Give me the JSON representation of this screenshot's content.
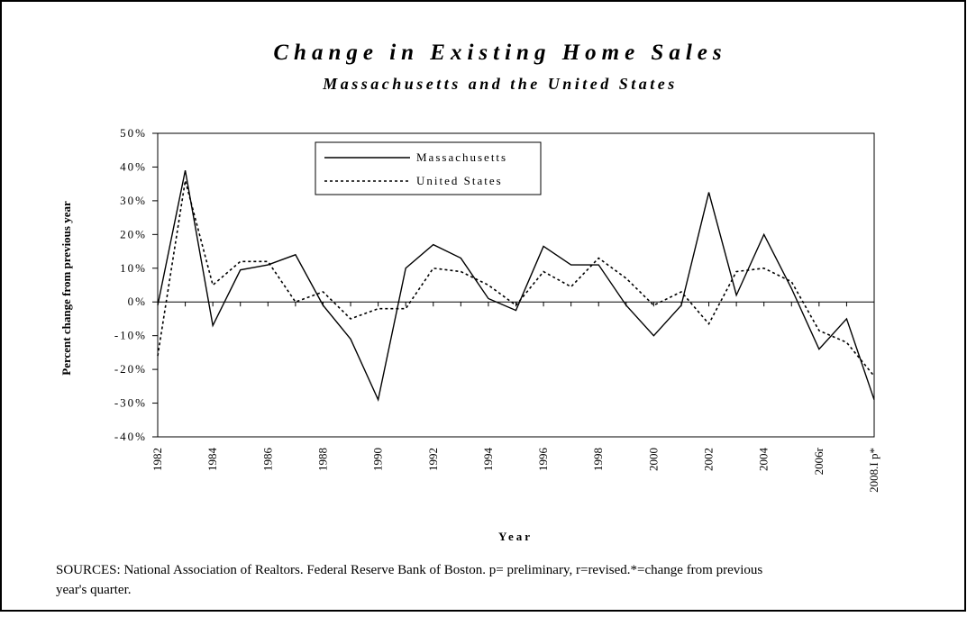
{
  "chart_data": {
    "type": "line",
    "title": "Change in Existing Home Sales",
    "subtitle": "Massachusetts and the United States",
    "x_label": "Year",
    "y_label": "Percent change from previous year",
    "note": "SOURCES: National Association of Realtors. Federal Reserve Bank of Boston. p= preliminary, r=revised.*=change from previous year's quarter.",
    "categories": [
      "1982",
      null,
      "1984",
      null,
      "1986",
      null,
      "1988",
      null,
      "1990",
      null,
      "1992",
      null,
      "1994",
      null,
      "1996",
      null,
      "1998",
      null,
      "2000",
      null,
      "2002",
      null,
      "2004",
      null,
      "2006r",
      null,
      "2008.I p*"
    ],
    "series": [
      {
        "name": "Massachusetts",
        "color": "#000000",
        "line_style": "solid",
        "values": [
          -1,
          39,
          -7,
          9.5,
          11,
          14,
          -1,
          -11,
          -29,
          10,
          17,
          13,
          1,
          -2.5,
          16.5,
          11,
          11,
          -1,
          -10,
          -1,
          32.5,
          2,
          20,
          4,
          -14,
          -5,
          -29
        ]
      },
      {
        "name": "United States",
        "color": "#000000",
        "line_style": "dotted",
        "values": [
          -16,
          36,
          5,
          12,
          12,
          0,
          3,
          -5,
          -2,
          -2,
          10,
          9,
          5,
          -1,
          9,
          4.5,
          13,
          7,
          -1,
          3,
          -6.5,
          9,
          10,
          6,
          -8.5,
          -12,
          -22
        ]
      }
    ],
    "ylim": [
      -40,
      50
    ],
    "yticks": [
      {
        "value": -40,
        "label": "-40%"
      },
      {
        "value": -30,
        "label": "-30%"
      },
      {
        "value": -20,
        "label": "-20%"
      },
      {
        "value": -10,
        "label": "-10%"
      },
      {
        "value": 0,
        "label": "0%"
      },
      {
        "value": 10,
        "label": "10%"
      },
      {
        "value": 20,
        "label": "20%"
      },
      {
        "value": 30,
        "label": "30%"
      },
      {
        "value": 40,
        "label": "40%"
      },
      {
        "value": 50,
        "label": "50%"
      }
    ],
    "grid": false
  }
}
